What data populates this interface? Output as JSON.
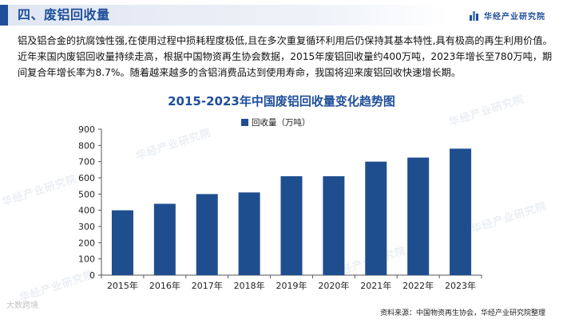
{
  "header": {
    "title": "四、废铝回收量",
    "brand": "华经产业研究院"
  },
  "intro_text": "铝及铝合金的抗腐蚀性强,在使用过程中损耗程度极低,且在多次重复循环利用后仍保持其基本特性,具有极高的再生利用价值。近年来国内废铝回收量持续走高，根据中国物资再生协会数据，2015年废铝回收量约400万吨，2023年增长至780万吨，期间复合年增长率为8.7%。随着越来越多的含铝消费品达到使用寿命，我国将迎来废铝回收快速增长期。",
  "chart_data": {
    "type": "bar",
    "title": "2015-2023年中国废铝回收量变化趋势图",
    "categories": [
      "2015年",
      "2016年",
      "2017年",
      "2018年",
      "2019年",
      "2020年",
      "2021年",
      "2022年",
      "2023年"
    ],
    "series": [
      {
        "name": "回收量（万吨）",
        "values": [
          400,
          440,
          500,
          510,
          610,
          610,
          700,
          725,
          780
        ],
        "color": "#1f4e8f"
      }
    ],
    "ylim": [
      0,
      900
    ],
    "yticks": [
      0,
      100,
      200,
      300,
      400,
      500,
      600,
      700,
      800,
      900
    ],
    "grid": false,
    "legend_position": "top-center"
  },
  "watermark_text": "华经产业研究院",
  "source": "资料来源：中国物资再生协会，华经产业研究院整理",
  "corner_mark": "大数跨境"
}
